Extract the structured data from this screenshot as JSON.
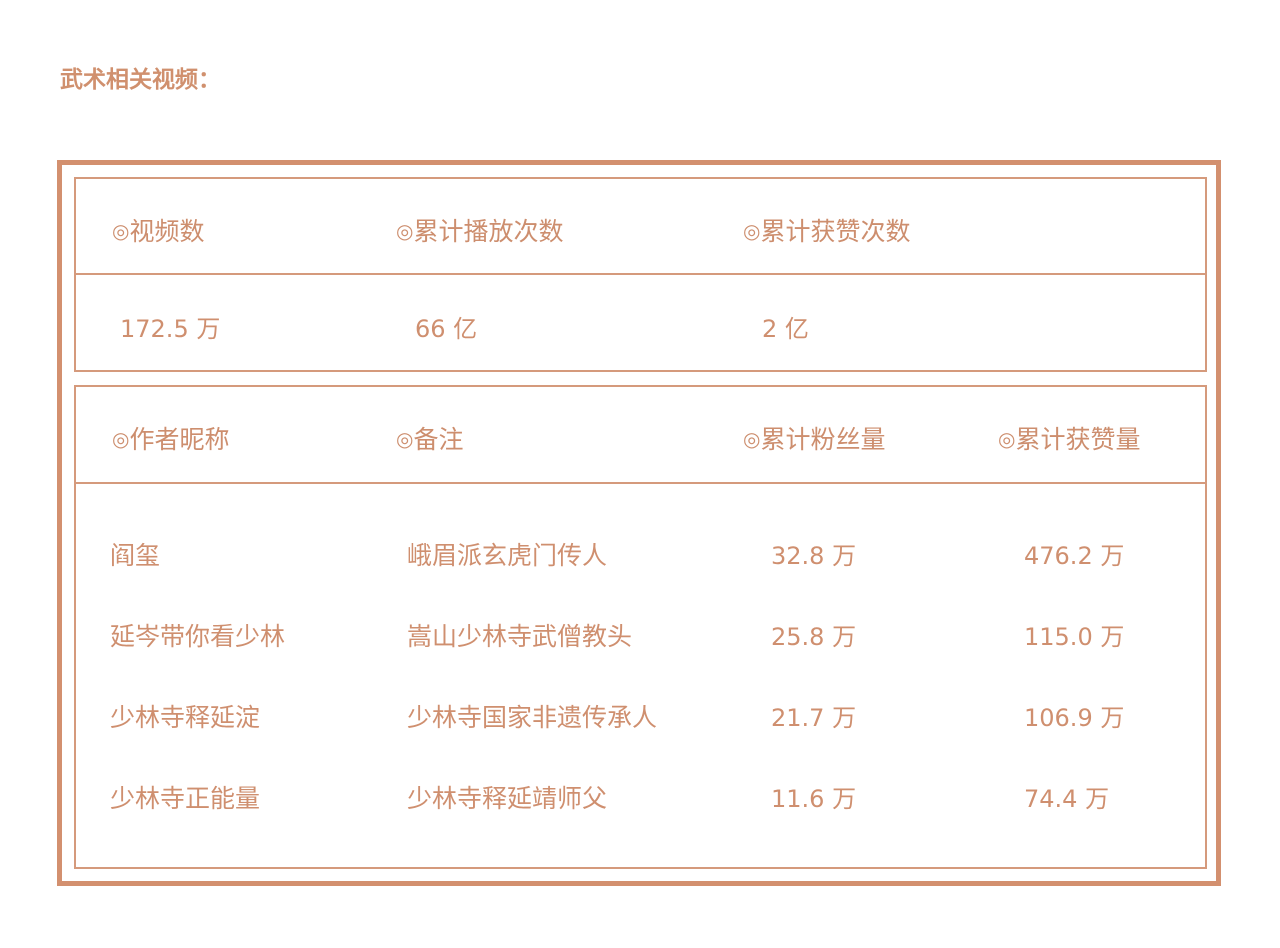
{
  "title": "武术相关视频：",
  "summary": {
    "headers": [
      "视频数",
      "累计播放次数",
      "累计获赞次数"
    ],
    "values": [
      "172.5 万",
      "66 亿",
      "2 亿"
    ]
  },
  "authors": {
    "headers": [
      "作者昵称",
      "备注",
      "累计粉丝量",
      "累计获赞量"
    ],
    "rows": [
      [
        "阎玺",
        "峨眉派玄虎门传人",
        "32.8 万",
        "476.2 万"
      ],
      [
        "延岑带你看少林",
        "嵩山少林寺武僧教头",
        "25.8 万",
        "115.0 万"
      ],
      [
        "少林寺释延淀",
        "少林寺国家非遗传承人",
        "21.7 万",
        "106.9 万"
      ],
      [
        "少林寺正能量",
        "少林寺释延靖师父",
        "11.6 万",
        "74.4 万"
      ]
    ]
  },
  "bullet": "◎",
  "colors": {
    "accent": "#d0906e"
  }
}
